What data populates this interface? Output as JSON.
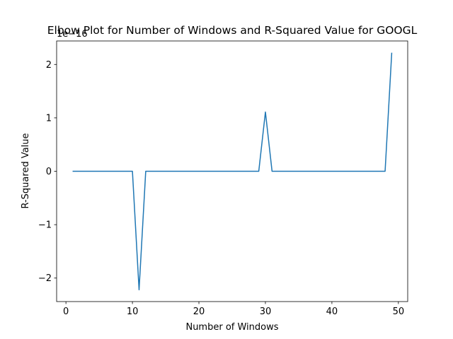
{
  "chart_data": {
    "type": "line",
    "title": "Elbow Plot for Number of Windows and R-Squared Value for GOOGL",
    "xlabel": "Number of Windows",
    "ylabel": "R-Squared Value",
    "y_offset_label": "1e−16",
    "xlim": [
      -1.4,
      51.4
    ],
    "ylim": [
      -2.44,
      2.44
    ],
    "y_scale_factor": "1e-16",
    "x_ticks": [
      0,
      10,
      20,
      30,
      40,
      50
    ],
    "x_tick_labels": [
      "0",
      "10",
      "20",
      "30",
      "40",
      "50"
    ],
    "y_ticks": [
      -2,
      -1,
      0,
      1,
      2
    ],
    "y_tick_labels": [
      "−2",
      "−1",
      "0",
      "1",
      "2"
    ],
    "grid": false,
    "series": [
      {
        "color": "#1f77b4",
        "x": [
          1,
          2,
          3,
          4,
          5,
          6,
          7,
          8,
          9,
          10,
          11,
          12,
          13,
          14,
          15,
          16,
          17,
          18,
          19,
          20,
          21,
          22,
          23,
          24,
          25,
          26,
          27,
          28,
          29,
          30,
          31,
          32,
          33,
          34,
          35,
          36,
          37,
          38,
          39,
          40,
          41,
          42,
          43,
          44,
          45,
          46,
          47,
          48,
          49
        ],
        "values": [
          0,
          0,
          0,
          0,
          0,
          0,
          0,
          0,
          0,
          0,
          -2.22,
          0,
          0,
          0,
          0,
          0,
          0,
          0,
          0,
          0,
          0,
          0,
          0,
          0,
          0,
          0,
          0,
          0,
          0,
          1.11,
          0,
          0,
          0,
          0,
          0,
          0,
          0,
          0,
          0,
          0,
          0,
          0,
          0,
          0,
          0,
          0,
          0,
          0,
          2.22
        ]
      }
    ]
  }
}
